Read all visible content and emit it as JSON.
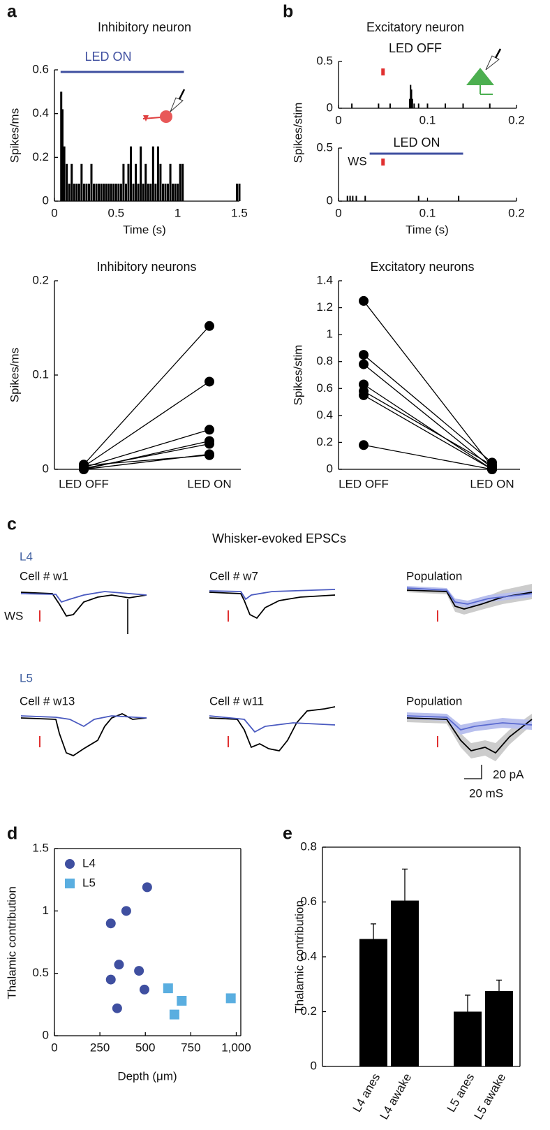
{
  "chart_data": [
    {
      "type": "spikes",
      "panel_label": "a",
      "title": "Inhibitory neuron",
      "ylabel": "Spikes/ms",
      "xlabel": "Time (s)",
      "annotation": "LED ON",
      "led_span": [
        0.05,
        1.05
      ],
      "led_color": "#3f4fa0",
      "color": "#000000",
      "xlim": [
        0,
        1.5
      ],
      "xticks": [
        0,
        0.5,
        1,
        1.5
      ],
      "ylim": [
        0,
        0.6
      ],
      "yticks": [
        0,
        0.2,
        0.4,
        0.6
      ],
      "x": [
        0.055,
        0.065,
        0.08,
        0.1,
        0.12,
        0.14,
        0.16,
        0.18,
        0.2,
        0.22,
        0.24,
        0.26,
        0.28,
        0.3,
        0.32,
        0.34,
        0.36,
        0.38,
        0.4,
        0.42,
        0.44,
        0.46,
        0.48,
        0.5,
        0.52,
        0.54,
        0.56,
        0.58,
        0.6,
        0.62,
        0.64,
        0.66,
        0.68,
        0.7,
        0.72,
        0.74,
        0.76,
        0.78,
        0.8,
        0.82,
        0.84,
        0.86,
        0.88,
        0.9,
        0.92,
        0.94,
        0.96,
        0.98,
        1.0,
        1.02,
        1.04,
        1.48,
        1.5
      ],
      "values": [
        0.5,
        0.42,
        0.25,
        0.17,
        0.08,
        0.17,
        0.08,
        0.08,
        0.08,
        0.17,
        0.08,
        0.08,
        0.08,
        0.17,
        0.08,
        0.08,
        0.08,
        0.08,
        0.08,
        0.08,
        0.08,
        0.08,
        0.08,
        0.08,
        0.08,
        0.08,
        0.17,
        0.08,
        0.17,
        0.25,
        0.08,
        0.17,
        0.08,
        0.25,
        0.08,
        0.17,
        0.08,
        0.08,
        0.25,
        0.08,
        0.25,
        0.17,
        0.08,
        0.08,
        0.08,
        0.17,
        0.08,
        0.08,
        0.08,
        0.17,
        0.17,
        0.08,
        0.08
      ]
    },
    {
      "type": "spikes",
      "panel_label": "b",
      "title": "Excitatory neuron",
      "subtitle": "LED OFF",
      "ylabel": "Spikes/stim",
      "stim_time": 0.05,
      "stim_color": "#e03030",
      "color": "#000000",
      "xlim": [
        0,
        0.2
      ],
      "xticks": [
        0,
        0.1,
        0.2
      ],
      "ylim": [
        0,
        0.5
      ],
      "yticks": [
        0,
        0.5
      ],
      "x": [
        0.015,
        0.045,
        0.058,
        0.08,
        0.081,
        0.082,
        0.083,
        0.085,
        0.09,
        0.1,
        0.12,
        0.14,
        0.17
      ],
      "values": [
        0.05,
        0.05,
        0.05,
        0.1,
        0.25,
        0.2,
        0.1,
        0.05,
        0.05,
        0.05,
        0.05,
        0.05,
        0.05
      ]
    },
    {
      "type": "spikes",
      "xlabel": "Time (s)",
      "annotation": "LED ON",
      "led_span": [
        0.035,
        0.14
      ],
      "led_color": "#3f4fa0",
      "stim_label": "WS",
      "stim_time": 0.05,
      "stim_color": "#e03030",
      "color": "#000000",
      "xlim": [
        0,
        0.2
      ],
      "xticks": [
        0,
        0.1,
        0.2
      ],
      "ylim": [
        0,
        0.5
      ],
      "yticks": [
        0,
        0.5
      ],
      "x": [
        0.01,
        0.013,
        0.016,
        0.02,
        0.03,
        0.09,
        0.135
      ],
      "values": [
        0.05,
        0.05,
        0.05,
        0.05,
        0.05,
        0.05,
        0.05
      ]
    },
    {
      "type": "paired",
      "title": "Inhibitory neurons",
      "ylabel": "Spikes/ms",
      "categories": [
        "LED OFF",
        "LED ON"
      ],
      "color": "#000000",
      "ylim": [
        0,
        0.2
      ],
      "yticks": [
        0,
        0.1,
        0.2
      ],
      "series": [
        {
          "values": [
            0.005,
            0.152
          ]
        },
        {
          "values": [
            0.003,
            0.093
          ]
        },
        {
          "values": [
            0.002,
            0.042
          ]
        },
        {
          "values": [
            0,
            0.03
          ]
        },
        {
          "values": [
            0.001,
            0.027
          ]
        },
        {
          "values": [
            0,
            0.016
          ]
        },
        {
          "values": [
            0.004,
            0.015
          ]
        }
      ]
    },
    {
      "type": "paired",
      "title": "Excitatory neurons",
      "ylabel": "Spikes/stim",
      "categories": [
        "LED OFF",
        "LED ON"
      ],
      "color": "#000000",
      "ylim": [
        0,
        1.4
      ],
      "yticks": [
        0,
        0.2,
        0.4,
        0.6,
        0.8,
        1,
        1.2,
        1.4
      ],
      "series": [
        {
          "values": [
            1.25,
            0.02
          ]
        },
        {
          "values": [
            0.85,
            0.05
          ]
        },
        {
          "values": [
            0.78,
            0.01
          ]
        },
        {
          "values": [
            0.63,
            0
          ]
        },
        {
          "values": [
            0.58,
            0.03
          ]
        },
        {
          "values": [
            0.55,
            0
          ]
        },
        {
          "values": [
            0.18,
            0
          ]
        }
      ]
    },
    {
      "type": "traces",
      "panel_label": "c",
      "title": "Whisker-evoked EPSCs",
      "stim_label": "WS",
      "scale_y": "20 pA",
      "scale_x": "20 mS",
      "rows": [
        {
          "label": "L4",
          "cells": [
            "Cell # w1",
            "Cell # w7",
            "Population"
          ]
        },
        {
          "label": "L5",
          "cells": [
            "Cell # w13",
            "Cell # w11",
            "Population"
          ]
        }
      ]
    },
    {
      "type": "scatter",
      "panel_label": "d",
      "xlabel": "Depth (μm)",
      "ylabel": "Thalamic contribution",
      "legend": "upper-left",
      "xlim": [
        0,
        1025
      ],
      "xticks": [
        0,
        250,
        500,
        750,
        {
          "value": 1000,
          "label": "1,000"
        }
      ],
      "ylim": [
        0,
        1.5
      ],
      "yticks": [
        0,
        0.5,
        1,
        1.5
      ],
      "series": [
        {
          "name": "L4",
          "color": "#3f4fa0",
          "marker": "circle",
          "x": [
            310,
            395,
            510,
            355,
            310,
            465,
            495,
            345
          ],
          "values": [
            0.9,
            1.0,
            1.19,
            0.57,
            0.45,
            0.52,
            0.37,
            0.22
          ]
        },
        {
          "name": "L5",
          "color": "#5aaee0",
          "marker": "square",
          "x": [
            625,
            660,
            700,
            970
          ],
          "values": [
            0.38,
            0.17,
            0.28,
            0.3
          ]
        }
      ]
    },
    {
      "type": "bar",
      "panel_label": "e",
      "ylabel": "Thalamic contribution",
      "color": "#000000",
      "categories": [
        "L4 anes",
        "L4 awake",
        "L5 anes",
        "L5 awake"
      ],
      "values": [
        0.465,
        0.605,
        0.2,
        0.275
      ],
      "errors": [
        0.055,
        0.115,
        0.06,
        0.04
      ],
      "ylim": [
        0,
        0.8
      ],
      "yticks": [
        0,
        0.2,
        0.4,
        0.6,
        0.8
      ]
    }
  ]
}
